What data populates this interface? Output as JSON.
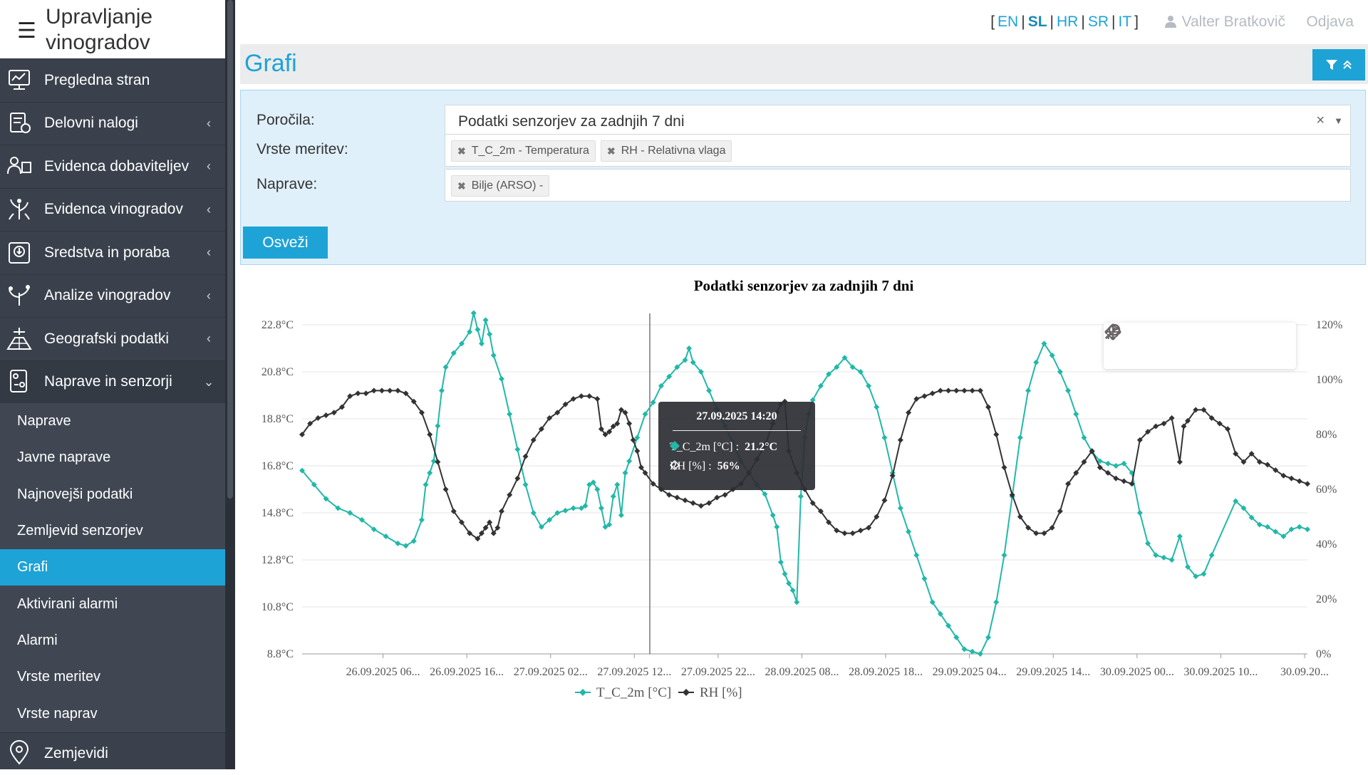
{
  "app": {
    "title": "Upravljanje vinogradov"
  },
  "sidebar": {
    "items": [
      {
        "label": "Pregledna stran",
        "icon": "dashboard-icon",
        "has_children": false
      },
      {
        "label": "Delovni nalogi",
        "icon": "work-orders-icon",
        "has_children": true
      },
      {
        "label": "Evidenca dobaviteljev",
        "icon": "suppliers-icon",
        "has_children": true
      },
      {
        "label": "Evidenca vinogradov",
        "icon": "vineyard-icon",
        "has_children": true
      },
      {
        "label": "Sredstva in poraba",
        "icon": "resources-icon",
        "has_children": true
      },
      {
        "label": "Analize vinogradov",
        "icon": "analysis-icon",
        "has_children": true
      },
      {
        "label": "Geografski podatki",
        "icon": "geo-icon",
        "has_children": true
      },
      {
        "label": "Naprave in senzorji",
        "icon": "sensor-icon",
        "has_children": true,
        "open": true
      }
    ],
    "subitems": [
      "Naprave",
      "Javne naprave",
      "Najnovejši podatki",
      "Zemljevid senzorjev",
      "Grafi",
      "Aktivirani alarmi",
      "Alarmi",
      "Vrste meritev",
      "Vrste naprav"
    ],
    "active_subitem": "Grafi",
    "last_item": {
      "label": "Zemjevidi",
      "icon": "map-pin-icon"
    }
  },
  "header": {
    "languages": [
      "EN",
      "SL",
      "HR",
      "SR",
      "IT"
    ],
    "current_language": "SL",
    "user": "Valter Bratkovič",
    "logout": "Odjava"
  },
  "page": {
    "title": "Grafi"
  },
  "filters": {
    "report_label": "Poročila:",
    "report_value": "Podatki senzorjev za zadnjih 7 dni",
    "measure_label": "Vrste meritev:",
    "measure_tags": [
      "T_C_2m - Temperatura",
      "RH - Relativna vlaga"
    ],
    "device_label": "Naprave:",
    "device_tags": [
      "Bilje (ARSO) -"
    ],
    "refresh_label": "Osveži"
  },
  "chart_data": {
    "type": "line",
    "title": "Podatki senzorjev za zadnjih 7 dni",
    "x_tick_labels": [
      "26.09.2025 06...",
      "26.09.2025 16...",
      "27.09.2025 02...",
      "27.09.2025 12...",
      "27.09.2025 22...",
      "28.09.2025 08...",
      "28.09.2025 18...",
      "29.09.2025 04...",
      "29.09.2025 14...",
      "30.09.2025 00...",
      "30.09.2025 10...",
      "30.09.20..."
    ],
    "y_left": {
      "labels": [
        "22.8°C",
        "20.8°C",
        "18.8°C",
        "16.8°C",
        "14.8°C",
        "12.8°C",
        "10.8°C",
        "8.8°C"
      ],
      "range": [
        8.8,
        22.8
      ]
    },
    "y_right": {
      "labels": [
        "120%",
        "100%",
        "80%",
        "60%",
        "40%",
        "20%",
        "0%"
      ],
      "range": [
        0,
        120
      ]
    },
    "series": [
      {
        "name": "T_C_2m [°C]",
        "axis": "left",
        "color": "#22b8a8",
        "points": [
          [
            0,
            16.6
          ],
          [
            3,
            16.0
          ],
          [
            6,
            15.4
          ],
          [
            9,
            15.0
          ],
          [
            12,
            14.8
          ],
          [
            15,
            14.5
          ],
          [
            18,
            14.1
          ],
          [
            21,
            13.8
          ],
          [
            24,
            13.5
          ],
          [
            26,
            13.4
          ],
          [
            28,
            13.6
          ],
          [
            30,
            14.5
          ],
          [
            31,
            16.0
          ],
          [
            32,
            16.5
          ],
          [
            33,
            17.0
          ],
          [
            34,
            18.5
          ],
          [
            35,
            20.0
          ],
          [
            36,
            21.0
          ],
          [
            38,
            21.6
          ],
          [
            40,
            22.0
          ],
          [
            42,
            22.5
          ],
          [
            43,
            23.3
          ],
          [
            44,
            22.6
          ],
          [
            45,
            22.0
          ],
          [
            46,
            23.0
          ],
          [
            47,
            22.4
          ],
          [
            48,
            21.5
          ],
          [
            50,
            20.5
          ],
          [
            52,
            19.0
          ],
          [
            54,
            17.5
          ],
          [
            56,
            16.0
          ],
          [
            58,
            14.8
          ],
          [
            60,
            14.2
          ],
          [
            62,
            14.5
          ],
          [
            64,
            14.8
          ],
          [
            66,
            14.9
          ],
          [
            68,
            15.0
          ],
          [
            70,
            15.0
          ],
          [
            71,
            15.1
          ],
          [
            72,
            16.0
          ],
          [
            73,
            16.1
          ],
          [
            74,
            15.8
          ],
          [
            75,
            15.0
          ],
          [
            76,
            14.2
          ],
          [
            77,
            14.3
          ],
          [
            78,
            15.5
          ],
          [
            79,
            16.0
          ],
          [
            80,
            14.7
          ],
          [
            81,
            16.5
          ],
          [
            82,
            17.0
          ],
          [
            84,
            18.0
          ],
          [
            86,
            19.0
          ],
          [
            88,
            19.5
          ],
          [
            90,
            20.2
          ],
          [
            92,
            20.6
          ],
          [
            94,
            21.0
          ],
          [
            96,
            21.3
          ],
          [
            97,
            21.8
          ],
          [
            98,
            21.2
          ],
          [
            100,
            20.8
          ],
          [
            102,
            20.0
          ],
          [
            104,
            19.2
          ],
          [
            106,
            18.5
          ],
          [
            108,
            17.8
          ],
          [
            110,
            17.0
          ],
          [
            112,
            16.5
          ],
          [
            114,
            16.0
          ],
          [
            116,
            15.6
          ],
          [
            118,
            14.7
          ],
          [
            119,
            14.2
          ],
          [
            120,
            12.7
          ],
          [
            121,
            12.2
          ],
          [
            122,
            11.8
          ],
          [
            123,
            11.5
          ],
          [
            124,
            11.0
          ],
          [
            125,
            15.5
          ],
          [
            126,
            18.0
          ],
          [
            127,
            19.0
          ],
          [
            128,
            19.6
          ],
          [
            130,
            20.2
          ],
          [
            132,
            20.7
          ],
          [
            134,
            21.0
          ],
          [
            136,
            21.4
          ],
          [
            138,
            21.0
          ],
          [
            140,
            20.8
          ],
          [
            142,
            20.2
          ],
          [
            144,
            19.3
          ],
          [
            146,
            18.0
          ],
          [
            148,
            16.5
          ],
          [
            150,
            15.0
          ],
          [
            152,
            14.0
          ],
          [
            154,
            13.0
          ],
          [
            156,
            12.0
          ],
          [
            158,
            11.0
          ],
          [
            160,
            10.5
          ],
          [
            162,
            10.0
          ],
          [
            164,
            9.5
          ],
          [
            166,
            9.0
          ],
          [
            168,
            8.9
          ],
          [
            170,
            8.8
          ],
          [
            172,
            9.5
          ],
          [
            174,
            11.0
          ],
          [
            176,
            13.0
          ],
          [
            178,
            15.5
          ],
          [
            180,
            18.0
          ],
          [
            182,
            20.0
          ],
          [
            184,
            21.2
          ],
          [
            186,
            22.0
          ],
          [
            188,
            21.5
          ],
          [
            190,
            20.8
          ],
          [
            192,
            20.0
          ],
          [
            194,
            19.0
          ],
          [
            196,
            18.0
          ],
          [
            198,
            17.4
          ],
          [
            200,
            17.0
          ],
          [
            202,
            16.9
          ],
          [
            204,
            16.8
          ],
          [
            206,
            16.9
          ],
          [
            208,
            16.5
          ],
          [
            210,
            14.8
          ],
          [
            212,
            13.5
          ],
          [
            214,
            13.0
          ],
          [
            216,
            12.9
          ],
          [
            218,
            12.8
          ],
          [
            220,
            13.8
          ],
          [
            222,
            12.5
          ],
          [
            224,
            12.1
          ],
          [
            226,
            12.2
          ],
          [
            228,
            13.0
          ],
          [
            234,
            15.3
          ],
          [
            236,
            15.0
          ],
          [
            238,
            14.6
          ],
          [
            240,
            14.3
          ],
          [
            242,
            14.2
          ],
          [
            244,
            14.0
          ],
          [
            246,
            13.8
          ],
          [
            248,
            14.1
          ],
          [
            250,
            14.2
          ],
          [
            252,
            14.1
          ]
        ]
      },
      {
        "name": "RH [%]",
        "axis": "right",
        "color": "#333333",
        "points": [
          [
            0,
            80
          ],
          [
            2,
            84
          ],
          [
            4,
            86
          ],
          [
            6,
            87
          ],
          [
            8,
            88
          ],
          [
            10,
            90
          ],
          [
            12,
            94
          ],
          [
            14,
            95
          ],
          [
            16,
            95
          ],
          [
            18,
            96
          ],
          [
            20,
            96
          ],
          [
            22,
            96
          ],
          [
            24,
            96
          ],
          [
            26,
            95
          ],
          [
            28,
            92
          ],
          [
            30,
            88
          ],
          [
            32,
            80
          ],
          [
            34,
            70
          ],
          [
            36,
            60
          ],
          [
            38,
            52
          ],
          [
            40,
            48
          ],
          [
            42,
            44
          ],
          [
            44,
            42
          ],
          [
            45,
            44
          ],
          [
            46,
            46
          ],
          [
            47,
            48
          ],
          [
            48,
            44
          ],
          [
            49,
            46
          ],
          [
            50,
            52
          ],
          [
            52,
            58
          ],
          [
            54,
            64
          ],
          [
            56,
            72
          ],
          [
            58,
            78
          ],
          [
            60,
            82
          ],
          [
            62,
            86
          ],
          [
            64,
            88
          ],
          [
            66,
            91
          ],
          [
            68,
            93
          ],
          [
            70,
            94
          ],
          [
            72,
            94
          ],
          [
            74,
            93
          ],
          [
            75,
            82
          ],
          [
            76,
            80
          ],
          [
            77,
            81
          ],
          [
            78,
            83
          ],
          [
            79,
            84
          ],
          [
            80,
            89
          ],
          [
            81,
            88
          ],
          [
            82,
            84
          ],
          [
            83,
            78
          ],
          [
            84,
            74
          ],
          [
            85,
            68
          ],
          [
            86,
            66
          ],
          [
            88,
            62
          ],
          [
            90,
            60
          ],
          [
            92,
            58
          ],
          [
            94,
            57
          ],
          [
            96,
            56
          ],
          [
            98,
            55
          ],
          [
            100,
            54
          ],
          [
            102,
            55
          ],
          [
            104,
            57
          ],
          [
            106,
            58
          ],
          [
            108,
            60
          ],
          [
            110,
            62
          ],
          [
            112,
            66
          ],
          [
            114,
            71
          ],
          [
            116,
            76
          ],
          [
            118,
            84
          ],
          [
            119,
            88
          ],
          [
            120,
            91
          ],
          [
            121,
            92
          ],
          [
            122,
            74
          ],
          [
            124,
            66
          ],
          [
            126,
            60
          ],
          [
            128,
            55
          ],
          [
            130,
            52
          ],
          [
            132,
            48
          ],
          [
            134,
            45
          ],
          [
            136,
            44
          ],
          [
            138,
            44
          ],
          [
            140,
            45
          ],
          [
            142,
            46
          ],
          [
            144,
            50
          ],
          [
            146,
            56
          ],
          [
            148,
            65
          ],
          [
            150,
            78
          ],
          [
            152,
            88
          ],
          [
            154,
            93
          ],
          [
            156,
            94
          ],
          [
            158,
            95
          ],
          [
            160,
            96
          ],
          [
            162,
            96
          ],
          [
            164,
            96
          ],
          [
            166,
            96
          ],
          [
            168,
            96
          ],
          [
            170,
            96
          ],
          [
            172,
            90
          ],
          [
            174,
            80
          ],
          [
            176,
            68
          ],
          [
            178,
            58
          ],
          [
            180,
            50
          ],
          [
            182,
            46
          ],
          [
            184,
            44
          ],
          [
            186,
            44
          ],
          [
            188,
            46
          ],
          [
            190,
            52
          ],
          [
            192,
            62
          ],
          [
            194,
            66
          ],
          [
            196,
            70
          ],
          [
            198,
            74
          ],
          [
            200,
            68
          ],
          [
            202,
            66
          ],
          [
            204,
            64
          ],
          [
            206,
            63
          ],
          [
            208,
            62
          ],
          [
            210,
            78
          ],
          [
            212,
            81
          ],
          [
            214,
            83
          ],
          [
            216,
            84
          ],
          [
            218,
            86
          ],
          [
            220,
            70
          ],
          [
            221,
            83
          ],
          [
            222,
            85
          ],
          [
            224,
            89
          ],
          [
            226,
            89
          ],
          [
            228,
            86
          ],
          [
            230,
            84
          ],
          [
            232,
            82
          ],
          [
            234,
            73
          ],
          [
            236,
            70
          ],
          [
            238,
            73
          ],
          [
            240,
            70
          ],
          [
            242,
            69
          ],
          [
            244,
            67
          ],
          [
            246,
            65
          ],
          [
            248,
            64
          ],
          [
            250,
            63
          ],
          [
            252,
            62
          ]
        ]
      }
    ],
    "legend_position": "bottom",
    "tooltip": {
      "header": "27.09.2025 14:20",
      "rows": [
        {
          "label": "T_C_2m [°C] :",
          "value": "21.2°C"
        },
        {
          "label": "RH [%] :",
          "value": "56%"
        }
      ]
    },
    "toolbox": [
      "zoom-select-icon",
      "zoom-in-icon",
      "zoom-out-icon",
      "pan-icon",
      "reset-icon"
    ]
  }
}
